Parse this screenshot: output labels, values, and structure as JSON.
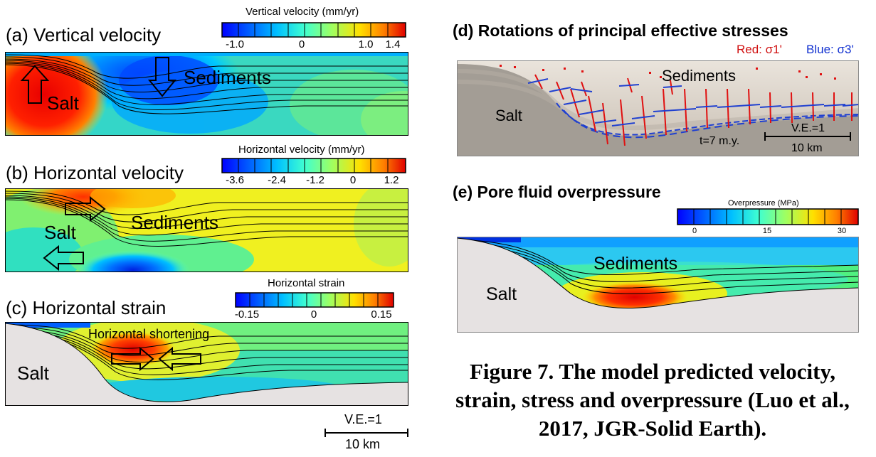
{
  "panel_a": {
    "title": "(a) Vertical velocity",
    "colorbar_title": "Vertical velocity (mm/yr)",
    "ticks": [
      "-1.0",
      "0",
      "1.0",
      "1.4"
    ],
    "label_salt": "Salt",
    "label_sediments": "Sediments"
  },
  "panel_b": {
    "title": "(b) Horizontal velocity",
    "colorbar_title": "Horizontal velocity (mm/yr)",
    "ticks": [
      "-3.6",
      "-2.4",
      "-1.2",
      "0",
      "1.2"
    ],
    "label_salt": "Salt",
    "label_sediments": "Sediments"
  },
  "panel_c": {
    "title": "(c) Horizontal strain",
    "colorbar_title": "Horizontal strain",
    "ticks": [
      "-0.15",
      "0",
      "0.15"
    ],
    "label_salt": "Salt",
    "label_annotation": "Horizontal shortening"
  },
  "scalebar_left": {
    "ve": "V.E.=1",
    "length": "10 km"
  },
  "panel_d": {
    "title": "(d) Rotations of principal effective stresses",
    "legend_red": "Red: σ1'",
    "legend_blue": "Blue: σ3'",
    "label_salt": "Salt",
    "label_sediments": "Sediments",
    "time": "t=7 m.y.",
    "ve": "V.E.=1",
    "length": "10 km"
  },
  "panel_e": {
    "title": "(e) Pore fluid overpressure",
    "colorbar_title": "Overpressure (MPa)",
    "ticks": [
      "0",
      "15",
      "30"
    ],
    "label_salt": "Salt",
    "label_sediments": "Sediments"
  },
  "caption": {
    "line1": "Figure 7. The model predicted velocity,",
    "line2": "strain, stress and overpressure (Luo et al.,",
    "line3": "2017, JGR-Solid Earth)."
  },
  "colors": {
    "jet": [
      "#0000ff",
      "#0050ff",
      "#00a0ff",
      "#00d8f0",
      "#40ffc0",
      "#90ff70",
      "#d8ff30",
      "#ffe000",
      "#ffa000",
      "#ff5000",
      "#e00000"
    ],
    "salt_gray": "#e6e2e2",
    "d_salt": "#a8a29a",
    "d_sediment": "#dcd4ca"
  }
}
